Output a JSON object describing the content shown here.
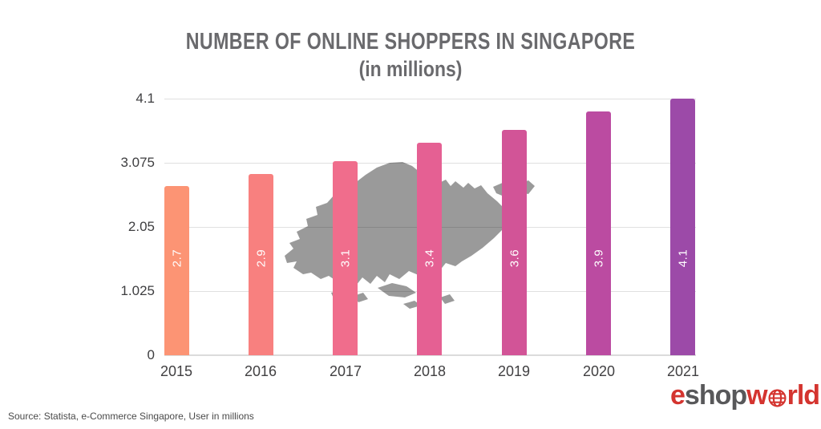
{
  "title": {
    "line1": "NUMBER OF ONLINE SHOPPERS IN SINGAPORE",
    "line2": "(in millions)"
  },
  "chart_data": {
    "type": "bar",
    "title": "NUMBER OF ONLINE SHOPPERS IN SINGAPORE (in millions)",
    "categories": [
      "2015",
      "2016",
      "2017",
      "2018",
      "2019",
      "2020",
      "2021"
    ],
    "values": [
      2.7,
      2.9,
      3.1,
      3.4,
      3.6,
      3.9,
      4.1
    ],
    "bar_labels": [
      "2.7",
      "2.9",
      "3.1",
      "3.4",
      "3.6",
      "3.9",
      "4.1"
    ],
    "bar_colors": [
      "#FC9474",
      "#F8807F",
      "#F06D8C",
      "#E56093",
      "#D25497",
      "#BB4BA1",
      "#9C4AA8"
    ],
    "y_ticks": [
      {
        "label": "4.1",
        "value": 4.1
      },
      {
        "label": "3.075",
        "value": 3.075
      },
      {
        "label": "2.05",
        "value": 2.05
      },
      {
        "label": "1.025",
        "value": 1.025
      },
      {
        "label": "0",
        "value": 0
      }
    ],
    "ylim": [
      0,
      4.1
    ],
    "xlabel": "",
    "ylabel": "",
    "grid": "horizontal",
    "legend": "none",
    "value_label_color": "#FFFFFF",
    "value_label_rotation": -90,
    "background_image": "singapore-map-silhouette",
    "map_color": "#9A9A9A"
  },
  "source_note": "Source: Statista, e-Commerce Singapore, User in millions",
  "logo": {
    "part_e": "e",
    "part_shop": "shop",
    "part_w": "w",
    "part_rld": "rld",
    "red": "#D4342F",
    "gray": "#58585A"
  }
}
